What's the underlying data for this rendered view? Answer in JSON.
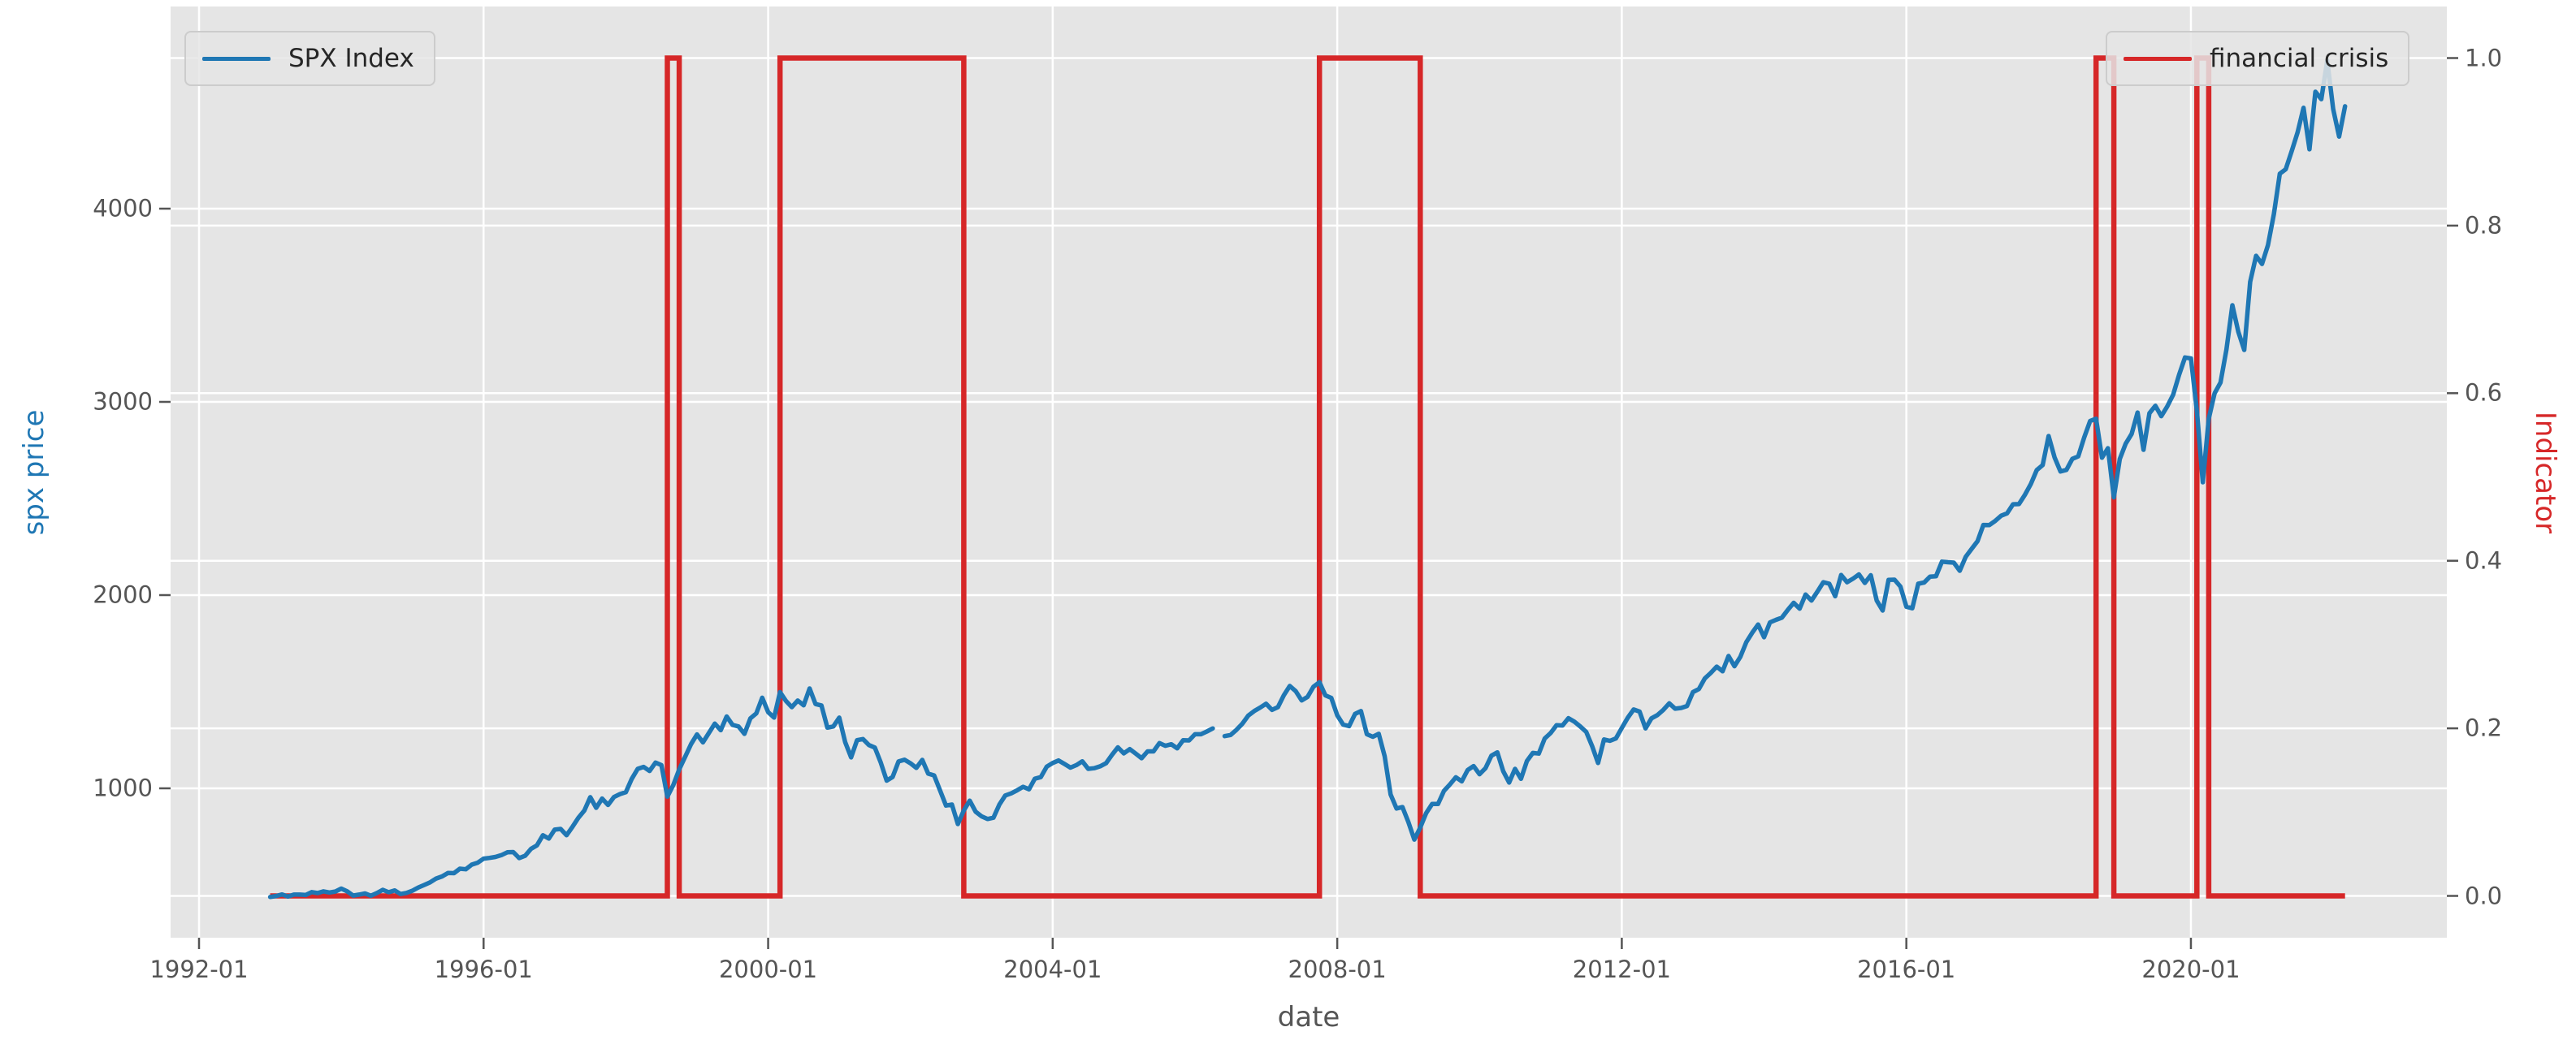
{
  "figure": {
    "type": "dual-axis time series plot",
    "style": "ggplot-gray"
  },
  "chart_data": {
    "type": "line",
    "title": "",
    "xlabel": "date",
    "ylabel_left": "spx price",
    "ylabel_right": "Indicator",
    "grid": true,
    "x_ticks": [
      "1992-01",
      "1996-01",
      "2000-01",
      "2004-01",
      "2008-01",
      "2012-01",
      "2016-01",
      "2020-01"
    ],
    "y_ticks_left": [
      "1000",
      "2000",
      "3000",
      "4000"
    ],
    "y_ticks_right": [
      "0.0",
      "0.2",
      "0.4",
      "0.6",
      "0.8",
      "1.0"
    ],
    "xlim_decimal_years": [
      1991.6,
      2023.6
    ],
    "ylim_left": [
      227,
      5038
    ],
    "ylim_right": [
      -0.05,
      1.06
    ],
    "colors": {
      "spx_line": "#1f77b4",
      "indicator_line": "#d62728",
      "plot_bg": "#e5e5e5",
      "grid": "#ffffff",
      "tick_text": "#555555",
      "legend_text": "#262626"
    },
    "legend_left_position": "upper left",
    "legend_right_position": "upper right",
    "series": [
      {
        "name": "SPX Index",
        "axis": "left",
        "start": "1993-01",
        "freq": "monthly",
        "values": [
          438,
          443,
          451,
          440,
          450,
          450,
          448,
          463,
          458,
          467,
          461,
          466,
          481,
          467,
          445,
          450,
          456,
          444,
          458,
          475,
          462,
          472,
          453,
          459,
          470,
          487,
          500,
          514,
          533,
          544,
          562,
          561,
          584,
          581,
          605,
          615,
          636,
          640,
          645,
          654,
          669,
          670,
          639,
          651,
          687,
          705,
          757,
          740,
          786,
          790,
          757,
          801,
          848,
          885,
          954,
          899,
          947,
          914,
          955,
          970,
          980,
          1049,
          1101,
          1111,
          1090,
          1133,
          1120,
          957,
          1017,
          1098,
          1163,
          1229,
          1279,
          1238,
          1286,
          1335,
          1301,
          1372,
          1328,
          1320,
          1282,
          1362,
          1388,
          1469,
          1394,
          1366,
          1498,
          1452,
          1420,
          1454,
          1430,
          1517,
          1436,
          1429,
          1314,
          1320,
          1366,
          1239,
          1160,
          1249,
          1255,
          1224,
          1211,
          1133,
          1040,
          1059,
          1139,
          1148,
          1130,
          1106,
          1147,
          1076,
          1067,
          989,
          911,
          916,
          815,
          885,
          936,
          879,
          855,
          841,
          848,
          916,
          963,
          974,
          990,
          1008,
          995,
          1050,
          1058,
          1112,
          1131,
          1144,
          1126,
          1107,
          1120,
          1140,
          1101,
          1104,
          1114,
          1130,
          1173,
          1212,
          1181,
          1203,
          1180,
          1156,
          1191,
          1191,
          1234,
          1220,
          1228,
          1207,
          1249,
          1248,
          1280,
          1280,
          1294,
          1310,
          null,
          1270,
          1276,
          1303,
          1335,
          1377,
          1400,
          1418,
          1438,
          1406,
          1420,
          1482,
          1530,
          1503,
          1455,
          1473,
          1526,
          1549,
          1481,
          1468,
          1378,
          1330,
          1322,
          1385,
          1400,
          1280,
          1267,
          1282,
          1166,
          968,
          896,
          903,
          825,
          735,
          797,
          872,
          919,
          919,
          987,
          1020,
          1057,
          1036,
          1095,
          1115,
          1073,
          1104,
          1169,
          1186,
          1089,
          1030,
          1101,
          1049,
          1141,
          1183,
          1180,
          1258,
          1286,
          1327,
          1325,
          1363,
          1345,
          1320,
          1292,
          1218,
          1131,
          1253,
          1246,
          1258,
          1312,
          1365,
          1408,
          1397,
          1310,
          1362,
          1379,
          1406,
          1440,
          1412,
          1416,
          1426,
          1498,
          1514,
          1569,
          1597,
          1630,
          1606,
          1685,
          1632,
          1681,
          1756,
          1805,
          1848,
          1782,
          1859,
          1872,
          1883,
          1923,
          1960,
          1930,
          2003,
          1972,
          2018,
          2067,
          2059,
          1994,
          2104,
          2067,
          2085,
          2107,
          2063,
          2103,
          1972,
          1920,
          2079,
          2080,
          2044,
          1940,
          1932,
          2059,
          2065,
          2096,
          2098,
          2173,
          2170,
          2168,
          2126,
          2198,
          2239,
          2279,
          2363,
          2362,
          2384,
          2411,
          2423,
          2470,
          2471,
          2519,
          2575,
          2647,
          2673,
          2823,
          2713,
          2640,
          2648,
          2705,
          2718,
          2816,
          2901,
          2913,
          2711,
          2760,
          2506,
          2704,
          2784,
          2834,
          2945,
          2752,
          2941,
          2980,
          2926,
          2976,
          3037,
          3140,
          3230,
          3225,
          2954,
          2584,
          2912,
          3044,
          3100,
          3271,
          3500,
          3363,
          3269,
          3621,
          3756,
          3714,
          3811,
          3972,
          4181,
          4204,
          4297,
          4395,
          4522,
          4307,
          4605,
          4567,
          4766,
          4515,
          4373,
          4530
        ]
      },
      {
        "name": "financial crisis",
        "axis": "right",
        "type": "step",
        "baseline": 0,
        "high": 1,
        "range": [
          "1993-01",
          "2022-03"
        ],
        "crisis_windows": [
          {
            "start": "1998-08",
            "end": "1998-10"
          },
          {
            "start": "2000-03",
            "end": "2002-10"
          },
          {
            "start": "2007-10",
            "end": "2009-03"
          },
          {
            "start": "2018-09",
            "end": "2018-12"
          },
          {
            "start": "2020-02",
            "end": "2020-04"
          }
        ]
      }
    ]
  }
}
